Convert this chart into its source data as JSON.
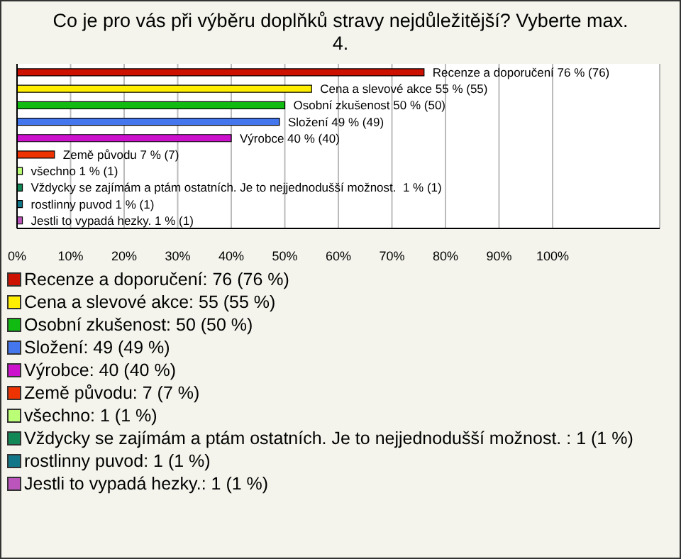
{
  "chart_data": {
    "type": "bar",
    "orientation": "horizontal",
    "title": "Co je pro vás při výběru doplňků stravy nejdůležitější? Vyberte max. 4.",
    "categories": [
      "Recenze a doporučení",
      "Cena a slevové akce",
      "Osobní zkušenost",
      "Složení",
      "Výrobce",
      "Země původu",
      "všechno",
      "Vždycky se zajímám a ptám ostatních. Je to nejjednodušší možnost.",
      "rostlinny puvod",
      "Jestli to vypadá hezky."
    ],
    "values": [
      76,
      55,
      50,
      49,
      40,
      7,
      1,
      1,
      1,
      1
    ],
    "colors": [
      "#cc1100",
      "#ffee00",
      "#11bb11",
      "#4477ee",
      "#cc11cc",
      "#ee3300",
      "#bbff77",
      "#118855",
      "#117788",
      "#bb55bb"
    ],
    "value_labels": [
      "76 % (76)",
      "55 % (55)",
      "50 % (50)",
      "49 % (49)",
      "40 % (40)",
      "7 % (7)",
      "1 % (1)",
      " 1 % (1)",
      "1 % (1)",
      "1 % (1)"
    ],
    "xlim": [
      0,
      120
    ],
    "xticks": [
      {
        "value": 0,
        "label": "0%"
      },
      {
        "value": 10,
        "label": "10%"
      },
      {
        "value": 20,
        "label": "20%"
      },
      {
        "value": 30,
        "label": "30%"
      },
      {
        "value": 40,
        "label": "40%"
      },
      {
        "value": 50,
        "label": "50%"
      },
      {
        "value": 60,
        "label": "60%"
      },
      {
        "value": 70,
        "label": "70%"
      },
      {
        "value": 80,
        "label": "80%"
      },
      {
        "value": 90,
        "label": "90%"
      },
      {
        "value": 100,
        "label": "100%"
      }
    ],
    "grid": "x",
    "annotations": [
      "Recenze a doporučení: 76 (76 %)",
      "Cena a slevové akce: 55 (55 %)",
      "Osobní zkušenost: 50 (50 %)",
      "Složení: 49 (49 %)",
      "Výrobce: 40 (40 %)",
      "Země původu: 7 (7 %)",
      "všechno: 1 (1 %)",
      "Vždycky se zajímám a ptám ostatních. Je to nejjednodušší možnost. : 1 (1 %)",
      "rostlinny puvod: 1 (1 %)",
      "Jestli to vypadá hezky.: 1 (1 %)"
    ]
  }
}
